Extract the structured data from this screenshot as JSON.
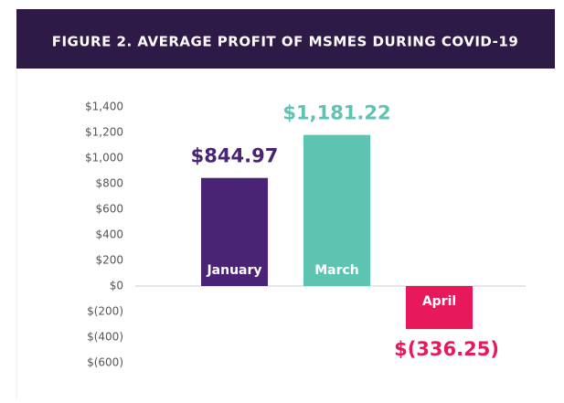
{
  "chart_data": {
    "type": "bar",
    "title": "FIGURE 2. AVERAGE PROFIT OF MSMES DURING COVID-19",
    "categories": [
      "January",
      "March",
      "April"
    ],
    "values": [
      844.97,
      1181.22,
      -336.25
    ],
    "value_labels": [
      "$844.97",
      "$1,181.22",
      "$(336.25)"
    ],
    "colors": [
      "#4a2376",
      "#5cc4b1",
      "#e8195b"
    ],
    "ylim": [
      -600,
      1400
    ],
    "yticks": [
      {
        "value": 1400,
        "label": "$1,400"
      },
      {
        "value": 1200,
        "label": "$1,200"
      },
      {
        "value": 1000,
        "label": "$1,000"
      },
      {
        "value": 800,
        "label": "$800"
      },
      {
        "value": 600,
        "label": "$600"
      },
      {
        "value": 400,
        "label": "$400"
      },
      {
        "value": 200,
        "label": "$200"
      },
      {
        "value": 0,
        "label": "$0"
      },
      {
        "value": -200,
        "label": "$(200)"
      },
      {
        "value": -400,
        "label": "$(400)"
      },
      {
        "value": -600,
        "label": "$(600)"
      }
    ],
    "grid": false
  }
}
